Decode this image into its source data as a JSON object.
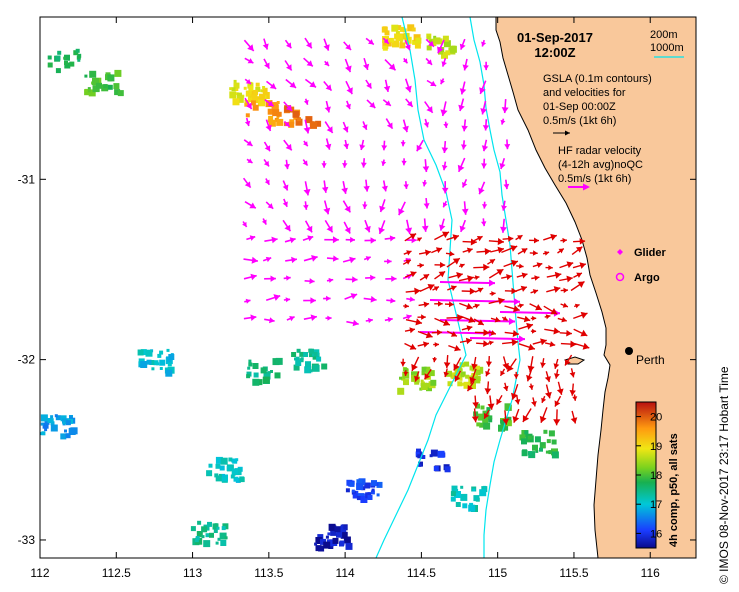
{
  "map": {
    "lon_range": [
      112,
      116.3
    ],
    "lat_range": [
      -33.1,
      -30.1
    ],
    "lon_ticks": [
      "112",
      "112.5",
      "113",
      "113.5",
      "114",
      "114.5",
      "115",
      "115.5",
      "116"
    ],
    "lat_ticks": [
      "-31",
      "-32",
      "-33"
    ]
  },
  "header": {
    "date": "01-Sep-2017",
    "time": "12:00Z"
  },
  "legend": {
    "isobath_200": "200m",
    "isobath_1000": "1000m",
    "gsla_title_1": "GSLA (0.1m contours)",
    "gsla_title_2": "and velocities for",
    "gsla_title_3": "01-Sep 00:00Z",
    "gsla_scale": "0.5m/s (1kt 6h)",
    "hf_title_1": "HF radar velocity",
    "hf_title_2": "(4-12h avg)noQC",
    "hf_scale": "0.5m/s (1kt 6h)",
    "glider": "Glider",
    "argo": "Argo"
  },
  "city": {
    "name": "Perth",
    "lon": 115.86,
    "lat": -31.95
  },
  "colorbar": {
    "ticks": [
      "16",
      "17",
      "18",
      "19",
      "20"
    ],
    "min": 15.5,
    "max": 20.5,
    "label": "4h comp, p50, all sats"
  },
  "credit": "©  IMOS 08-Nov-2017 23:17 Hobart Time",
  "colors": {
    "land": "#f9c89b",
    "isobath": "#00e5ee",
    "gsla_arrow": "#ff00ff",
    "hf_arrow": "#e00000",
    "glider": "#ff00ff"
  },
  "sst_patches": [
    {
      "lon": 112.15,
      "lat": -30.33,
      "sst": 17.6
    },
    {
      "lon": 112.4,
      "lat": -30.45,
      "sst": 18.0
    },
    {
      "lon": 113.35,
      "lat": -30.5,
      "sst": 18.9
    },
    {
      "lon": 113.45,
      "lat": -30.62,
      "sst": 19.6
    },
    {
      "lon": 113.7,
      "lat": -30.65,
      "sst": 19.8
    },
    {
      "lon": 114.6,
      "lat": -30.25,
      "sst": 18.6
    },
    {
      "lon": 114.35,
      "lat": -30.2,
      "sst": 19.0
    },
    {
      "lon": 113.45,
      "lat": -32.05,
      "sst": 17.5
    },
    {
      "lon": 113.75,
      "lat": -32.0,
      "sst": 17.4
    },
    {
      "lon": 112.75,
      "lat": -32.0,
      "sst": 17.0
    },
    {
      "lon": 114.45,
      "lat": -32.1,
      "sst": 18.4
    },
    {
      "lon": 114.75,
      "lat": -32.07,
      "sst": 18.6
    },
    {
      "lon": 114.95,
      "lat": -32.3,
      "sst": 18.0
    },
    {
      "lon": 115.25,
      "lat": -32.45,
      "sst": 17.8
    },
    {
      "lon": 114.55,
      "lat": -32.55,
      "sst": 15.9
    },
    {
      "lon": 114.1,
      "lat": -32.7,
      "sst": 16.1
    },
    {
      "lon": 113.9,
      "lat": -32.97,
      "sst": 15.7
    },
    {
      "lon": 113.2,
      "lat": -32.6,
      "sst": 17.1
    },
    {
      "lon": 112.1,
      "lat": -32.35,
      "sst": 16.7
    },
    {
      "lon": 114.8,
      "lat": -32.75,
      "sst": 17.2
    },
    {
      "lon": 113.1,
      "lat": -32.95,
      "sst": 17.4
    }
  ]
}
